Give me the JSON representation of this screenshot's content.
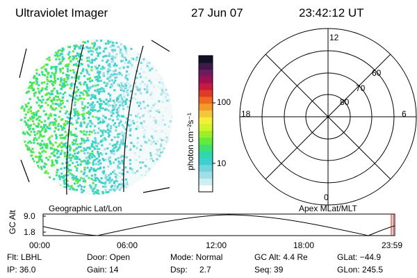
{
  "header": {
    "instrument": "Ultraviolet Imager",
    "date": "27 Jun 07",
    "time": "23:42:12 UT"
  },
  "colorbar": {
    "label": "photon cm⁻²s⁻¹",
    "ticks": [
      "100",
      "10"
    ],
    "colors": [
      "#ffffff",
      "#cfeef2",
      "#9fe0e8",
      "#6fd6dc",
      "#3fcfcf",
      "#2ed8b0",
      "#3fe070",
      "#63ea3a",
      "#9cf02a",
      "#d2f22a",
      "#f3f03a",
      "#f2c83a",
      "#f29a2a",
      "#ee6a20",
      "#e03a2a",
      "#c81a40",
      "#a01050",
      "#701a60",
      "#40184a",
      "#14102a"
    ]
  },
  "polar": {
    "labels": {
      "top": "12",
      "left": "18",
      "right": "6",
      "bottom": "0"
    },
    "rings": [
      "60",
      "70",
      "80"
    ]
  },
  "plot_labels": {
    "left_title": "Geographic Lat/Lon",
    "right_title": "Apex MLat/MLT"
  },
  "timeline": {
    "ylabel": "GC Alt",
    "yticks": [
      "9.0",
      "1.8"
    ],
    "xticks": [
      "00:00",
      "06:00",
      "12:00",
      "18:00",
      "23:59"
    ]
  },
  "info": {
    "filter": "Flt: LBHL",
    "door": "Door: Open",
    "mode": "Mode: Normal",
    "gc_alt": "GC Alt: 4.4 Re",
    "glat": "GLat: −44.9",
    "ip": "IP: 36.0",
    "gain": "Gain: 14",
    "dsp_label": "Dsp:",
    "dsp_value": "2.7",
    "seq": "Seq: 39",
    "glon": "GLon: 245.5"
  }
}
